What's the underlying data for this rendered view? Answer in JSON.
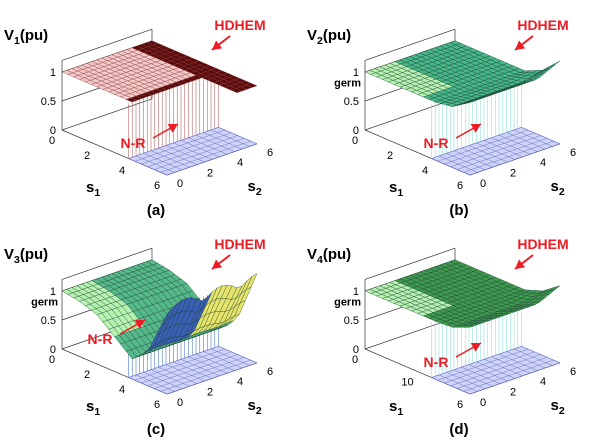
{
  "chart_data": [
    {
      "type": "surface",
      "panel_label": "(a)",
      "zlabel_base": "V",
      "zlabel_sub": "1",
      "zlabel_unit": "(pu)",
      "xlabel_base": "s",
      "xlabel_sub": "1",
      "ylabel_base": "s",
      "ylabel_sub": "2",
      "zticks": [
        "0",
        "0.5",
        "1"
      ],
      "xticks": [
        "0",
        "2",
        "4",
        "6"
      ],
      "yticks": [
        "0",
        "2",
        "4",
        "6"
      ],
      "annotations": [
        "HDHEM",
        "N-R"
      ],
      "series": [
        {
          "name": "HDHEM",
          "values": [
            1.0,
            1.0,
            1.0,
            1.0,
            1.0,
            1.0,
            1.0
          ]
        },
        {
          "name": "N-R",
          "values": [
            1.0,
            1.0,
            1.0,
            0.95,
            0.0,
            0.0,
            0.0
          ]
        }
      ],
      "colors": {
        "hdhem_surface": "#f3c9c9",
        "hdhem_dark": "#5a0a0a",
        "nr_surface": "#d8dcf5",
        "nr_curtain": "#b06060"
      }
    },
    {
      "type": "surface",
      "panel_label": "(b)",
      "zlabel_base": "V",
      "zlabel_sub": "2",
      "zlabel_unit": "(pu)",
      "xlabel_base": "s",
      "xlabel_sub": "1",
      "ylabel_base": "s",
      "ylabel_sub": "2",
      "zticks": [
        "0",
        "0.5",
        "1"
      ],
      "extra_tick": "germ",
      "xticks": [
        "0",
        "2",
        "4",
        "6"
      ],
      "yticks": [
        "0",
        "2",
        "4",
        "6"
      ],
      "annotations": [
        "HDHEM",
        "N-R"
      ],
      "series": [
        {
          "name": "HDHEM",
          "values": [
            1.0,
            1.0,
            1.0,
            1.0,
            1.0,
            1.05,
            1.25
          ]
        },
        {
          "name": "N-R",
          "values": [
            1.0,
            1.0,
            1.0,
            0.95,
            0.0,
            0.0,
            0.0
          ]
        }
      ],
      "colors": {
        "surface": "#3fae6a",
        "nr_surface": "#c6f0d0",
        "curtain": "#8fe0e8"
      }
    },
    {
      "type": "surface",
      "panel_label": "(c)",
      "zlabel_base": "V",
      "zlabel_sub": "3",
      "zlabel_unit": "(pu)",
      "xlabel_base": "s",
      "xlabel_sub": "1",
      "ylabel_base": "s",
      "ylabel_sub": "2",
      "zticks": [
        "0",
        "0.5",
        "1"
      ],
      "extra_tick": "germ",
      "xticks": [
        "0",
        "2",
        "4",
        "6"
      ],
      "yticks": [
        "0",
        "2",
        "4",
        "6"
      ],
      "annotations": [
        "HDHEM",
        "N-R"
      ],
      "series": [
        {
          "name": "HDHEM",
          "values": [
            1.0,
            0.95,
            0.85,
            0.6,
            0.35,
            0.6,
            1.2
          ]
        },
        {
          "name": "N-R",
          "values": [
            1.0,
            1.0,
            1.0,
            0.95,
            0.0,
            0.0,
            0.0
          ]
        }
      ],
      "colors": {
        "surface": "#4caf80",
        "valley": "#2a4fa8",
        "rising": "#e0e060",
        "nr_surface": "#c6f0d0"
      }
    },
    {
      "type": "surface",
      "panel_label": "(d)",
      "zlabel_base": "V",
      "zlabel_sub": "4",
      "zlabel_unit": "(pu)",
      "xlabel_base": "s",
      "xlabel_sub": "1",
      "ylabel_base": "s",
      "ylabel_sub": "2",
      "zticks": [
        "0",
        "0.5",
        "1"
      ],
      "extra_tick": "germ",
      "xticks": [
        "0",
        "10",
        "6"
      ],
      "yticks": [
        "0",
        "2",
        "4",
        "6"
      ],
      "annotations": [
        "HDHEM",
        "N-R"
      ],
      "series": [
        {
          "name": "HDHEM",
          "values": [
            1.0,
            1.0,
            1.0,
            1.0,
            1.0,
            1.02,
            1.15
          ]
        },
        {
          "name": "N-R",
          "values": [
            1.0,
            1.0,
            1.0,
            0.95,
            0.0,
            0.0,
            0.0
          ]
        }
      ],
      "colors": {
        "surface": "#3f9a4f",
        "nr_surface": "#c6f0d0",
        "curtain": "#9fe6c8"
      }
    }
  ]
}
